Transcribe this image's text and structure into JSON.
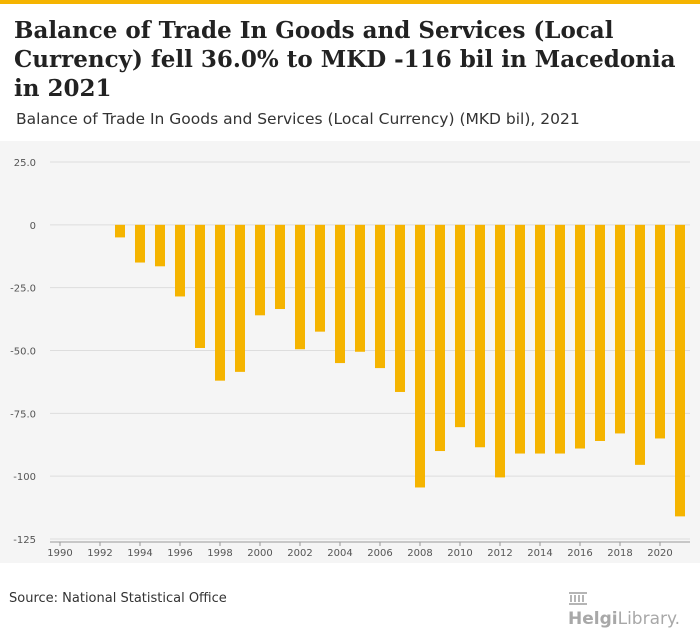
{
  "header": {
    "title": "Balance of Trade In Goods and Services (Local Currency) fell 36.0% to MKD -116 bil in Macedonia in 2021",
    "subtitle": "Balance of Trade In Goods and Services (Local Currency) (MKD bil), 2021"
  },
  "footer": {
    "source": "Source: National Statistical Office",
    "logo_part1": "Helgi",
    "logo_part2": "Library."
  },
  "colors": {
    "bar": "#f5b400",
    "accent": "#f5b400",
    "background": "#f5f5f5",
    "grid": "#dddddd"
  },
  "chart_data": {
    "type": "bar",
    "years": [
      1993,
      1994,
      1995,
      1996,
      1997,
      1998,
      1999,
      2000,
      2001,
      2002,
      2003,
      2004,
      2005,
      2006,
      2007,
      2008,
      2009,
      2010,
      2011,
      2012,
      2013,
      2014,
      2015,
      2016,
      2017,
      2018,
      2019,
      2020,
      2021
    ],
    "values": [
      -5,
      -15,
      -16.5,
      -28.5,
      -49,
      -62,
      -58.5,
      -36,
      -33.5,
      -49.5,
      -42.5,
      -55,
      -50.5,
      -57,
      -66.5,
      -104.5,
      -90,
      -80.5,
      -88.5,
      -100.5,
      -91,
      -91,
      -91,
      -89,
      -86,
      -83,
      -95.5,
      -85,
      -116
    ],
    "x_ticks": [
      "1990",
      "1992",
      "1994",
      "1996",
      "1998",
      "2000",
      "2002",
      "2004",
      "2006",
      "2008",
      "2010",
      "2012",
      "2014",
      "2016",
      "2018",
      "2020"
    ],
    "y_ticks": [
      "25.0",
      "0",
      "-25.0",
      "-50.0",
      "-75.0",
      "-100",
      "-125"
    ],
    "ylim": [
      -125,
      25
    ],
    "xlim": [
      1989.5,
      2021.5
    ],
    "grid": true,
    "legend": "none"
  }
}
